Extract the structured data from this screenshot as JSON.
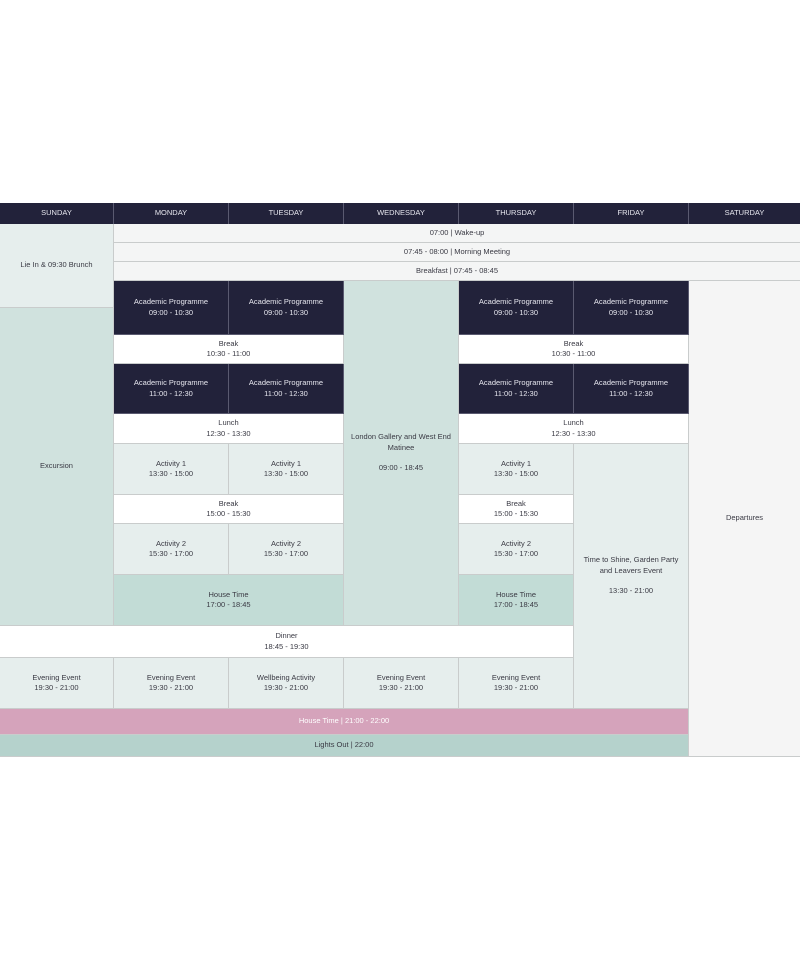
{
  "days": [
    "SUNDAY",
    "MONDAY",
    "TUESDAY",
    "WEDNESDAY",
    "THURSDAY",
    "FRIDAY",
    "SATURDAY"
  ],
  "rows": {
    "wakeup": "07:00  |  Wake-up",
    "meeting": "07:45 - 08:00  | Morning Meeting",
    "breakfast": "Breakfast  |  07:45 - 08:45",
    "house_time_night": "House Time  |  21:00  -  22:00",
    "lights_out": "Lights Out |  22:00"
  },
  "sunday": {
    "lie_in": "Lie In & 09:30 Brunch",
    "excursion": "Excursion"
  },
  "academic": {
    "label": "Academic Programme",
    "am1": "09:00 - 10:30",
    "am2": "11:00 - 12:30"
  },
  "break1": {
    "label": "Break",
    "time": "10:30 - 11:00"
  },
  "lunch": {
    "label": "Lunch",
    "time": "12:30 - 13:30"
  },
  "activity1": {
    "label": "Activity 1",
    "time": "13:30 - 15:00"
  },
  "break2": {
    "label": "Break",
    "time": "15:00 - 15:30"
  },
  "activity2": {
    "label": "Activity 2",
    "time": "15:30 - 17:00"
  },
  "house_time": {
    "label": "House Time",
    "time": "17:00 - 18:45"
  },
  "dinner": {
    "label": "Dinner",
    "time": "18:45 - 19:30"
  },
  "evening": {
    "label": "Evening Event",
    "wellbeing": "Wellbeing Activity",
    "time": "19:30 - 21:00"
  },
  "wednesday": {
    "label": "London Gallery and West End Matinee",
    "time": "09:00 - 18:45"
  },
  "friday": {
    "label": "Time to Shine, Garden Party and Leavers Event",
    "time": "13:30 - 21:00"
  },
  "saturday": {
    "label": "Departures"
  },
  "colors": {
    "navy": "#22223a",
    "pink": "#d5a3bb",
    "teal": "#b5d2cc",
    "house": "#c2dcd6"
  }
}
